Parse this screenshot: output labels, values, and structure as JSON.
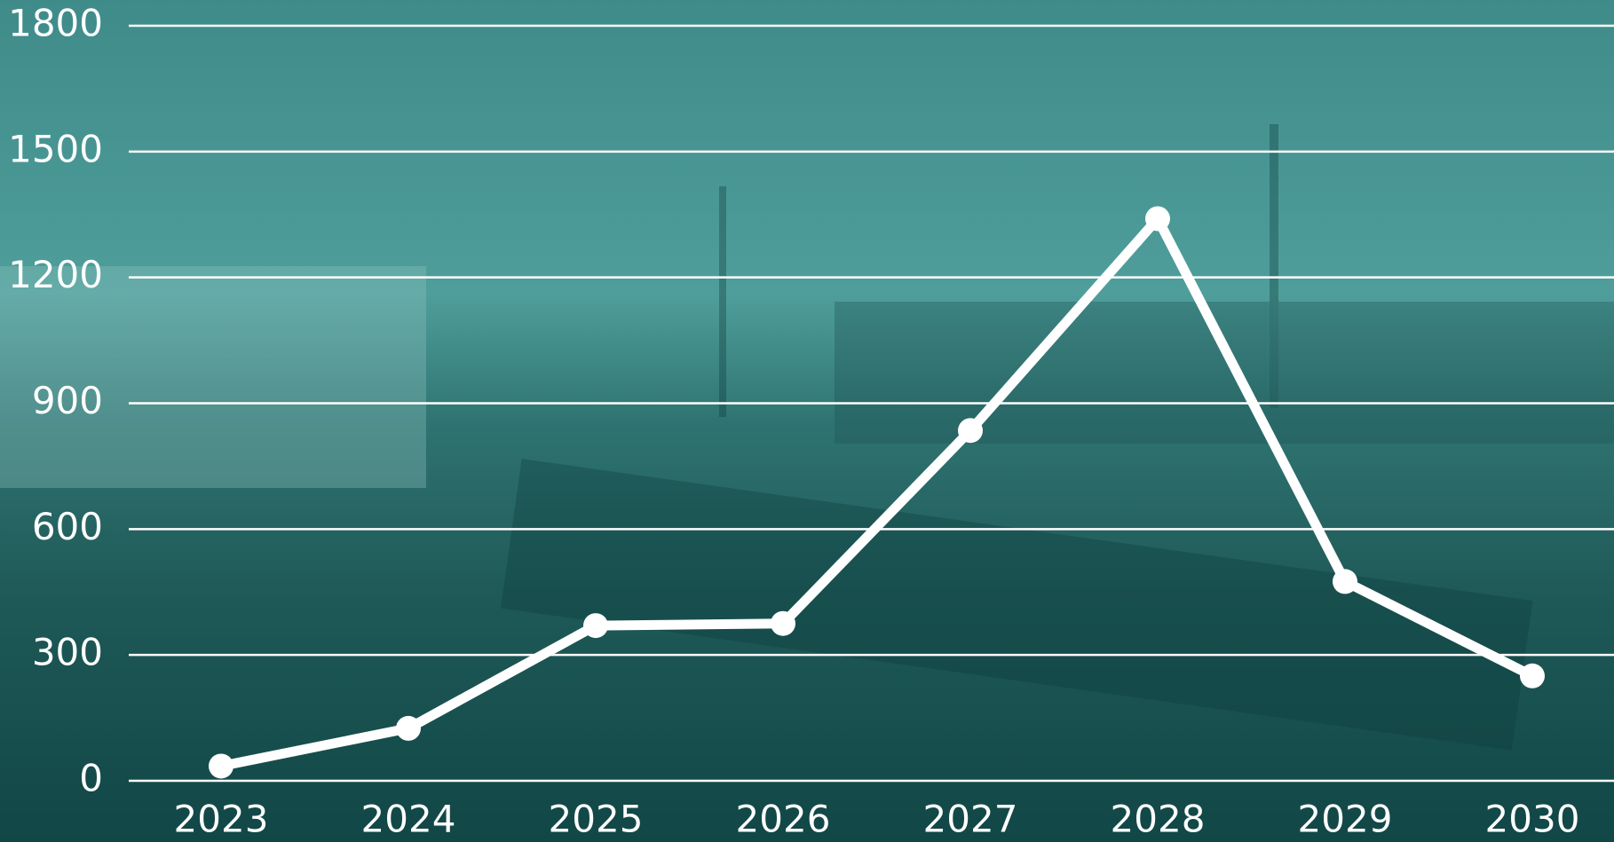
{
  "chart_data": {
    "type": "line",
    "x": [
      "2023",
      "2024",
      "2025",
      "2026",
      "2027",
      "2028",
      "2029",
      "2030"
    ],
    "series": [
      {
        "color": "#ffffff",
        "values": [
          35,
          125,
          370,
          375,
          835,
          1340,
          475,
          250
        ]
      }
    ],
    "ylim": [
      0,
      1800
    ],
    "yticks": [
      0,
      300,
      600,
      900,
      1200,
      1500,
      1800
    ],
    "grid": true
  }
}
